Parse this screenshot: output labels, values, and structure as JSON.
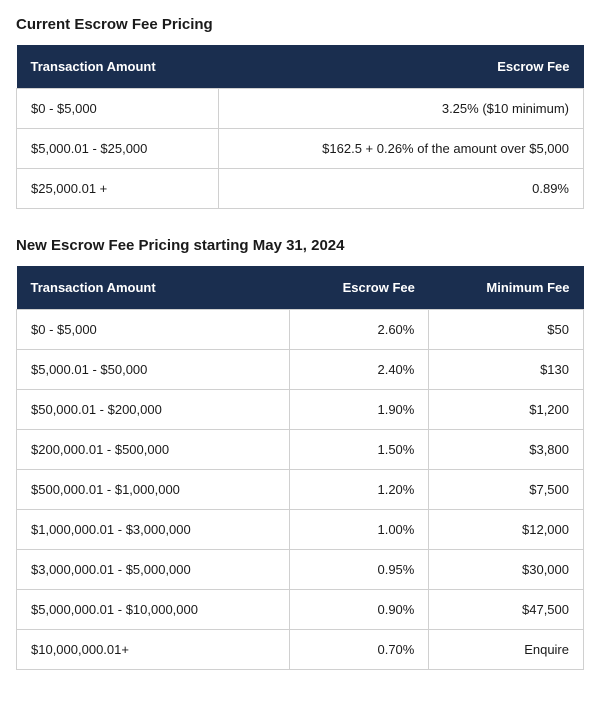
{
  "colors": {
    "header_bg": "#1a2e4f",
    "header_text": "#ffffff",
    "border": "#d0d0d0",
    "text": "#1a1a1a",
    "page_bg": "#ffffff"
  },
  "typography": {
    "title_fontsize": 15,
    "title_weight": 700,
    "header_fontsize": 13,
    "cell_fontsize": 13
  },
  "current": {
    "title": "Current Escrow Fee Pricing",
    "type": "table",
    "columns": [
      {
        "label": "Transaction Amount",
        "align": "left"
      },
      {
        "label": "Escrow Fee",
        "align": "right"
      }
    ],
    "rows": [
      {
        "amount": "$0 - $5,000",
        "fee": "3.25% ($10 minimum)"
      },
      {
        "amount": "$5,000.01 - $25,000",
        "fee": "$162.5 + 0.26% of the amount over $5,000"
      },
      {
        "amount": "$25,000.01 +",
        "fee": "0.89%"
      }
    ]
  },
  "new": {
    "title": "New Escrow Fee Pricing starting May 31, 2024",
    "type": "table",
    "columns": [
      {
        "label": "Transaction Amount",
        "align": "left"
      },
      {
        "label": "Escrow Fee",
        "align": "right"
      },
      {
        "label": "Minimum Fee",
        "align": "right"
      }
    ],
    "rows": [
      {
        "amount": "$0 - $5,000",
        "fee": "2.60%",
        "min": "$50"
      },
      {
        "amount": "$5,000.01 - $50,000",
        "fee": "2.40%",
        "min": "$130"
      },
      {
        "amount": "$50,000.01 - $200,000",
        "fee": "1.90%",
        "min": "$1,200"
      },
      {
        "amount": "$200,000.01 - $500,000",
        "fee": "1.50%",
        "min": "$3,800"
      },
      {
        "amount": "$500,000.01 - $1,000,000",
        "fee": "1.20%",
        "min": "$7,500"
      },
      {
        "amount": "$1,000,000.01 - $3,000,000",
        "fee": "1.00%",
        "min": "$12,000"
      },
      {
        "amount": "$3,000,000.01 - $5,000,000",
        "fee": "0.95%",
        "min": "$30,000"
      },
      {
        "amount": "$5,000,000.01 - $10,000,000",
        "fee": "0.90%",
        "min": "$47,500"
      },
      {
        "amount": "$10,000,000.01+",
        "fee": "0.70%",
        "min": "Enquire"
      }
    ]
  }
}
